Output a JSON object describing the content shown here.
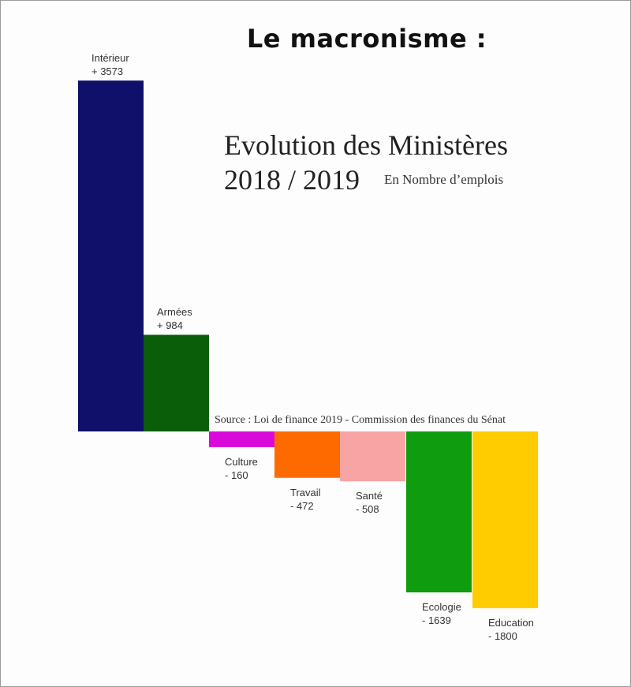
{
  "headline": "Le macronisme :",
  "chart_data": {
    "type": "bar",
    "title": "Evolution des Ministères",
    "subtitle": "2018 / 2019",
    "unit": "En Nombre d’emplois",
    "source": "Source : Loi de finance 2019 - Commission des finances du Sénat",
    "categories": [
      "Intérieur",
      "Armées",
      "Culture",
      "Travail",
      "Santé",
      "Ecologie",
      "Education"
    ],
    "values": [
      3573,
      984,
      -160,
      -472,
      -508,
      -1639,
      -1800
    ],
    "value_labels": [
      "+ 3573",
      "+ 984",
      "- 160",
      "- 472",
      "- 508",
      "- 1639",
      "- 1800"
    ],
    "colors": [
      "#10106b",
      "#0a5e0a",
      "#d90ad9",
      "#ff6a00",
      "#f8a4a4",
      "#0f9d0f",
      "#ffcc00"
    ],
    "xlabel": "",
    "ylabel": "",
    "grid": false
  }
}
